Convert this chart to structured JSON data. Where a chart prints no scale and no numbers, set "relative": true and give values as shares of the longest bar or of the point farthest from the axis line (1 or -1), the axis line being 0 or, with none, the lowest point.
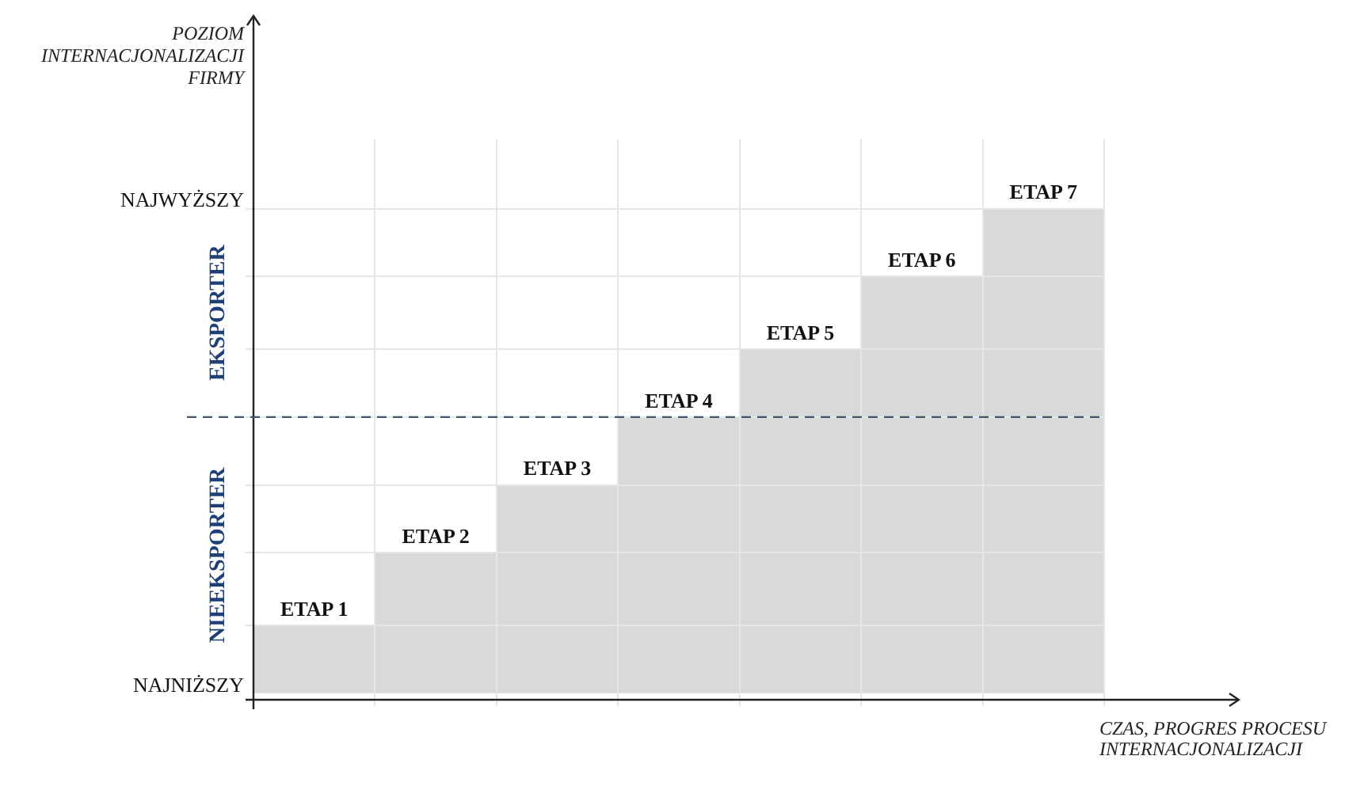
{
  "chart_data": {
    "type": "bar",
    "xlabel": "CZAS, PROGRES PROCESU INTERNACJONALIZACJI",
    "categories": [
      "ETAP 1",
      "ETAP 2",
      "ETAP 3",
      "ETAP 4",
      "ETAP 5",
      "ETAP 6",
      "ETAP 7"
    ],
    "values": [
      0.14,
      0.29,
      0.43,
      0.57,
      0.71,
      0.86,
      1
    ],
    "color": "#d9d9d9",
    "relative": true,
    "grid": true,
    "ref_lines": [
      {
        "axis": "y",
        "value": 0.57,
        "color": "#44546a",
        "line_style": "dashed"
      }
    ],
    "annotations": [
      "POZIOM INTERNACJONALIZACJI FIRMY",
      "NAJWYŻSZY",
      "NAJNIŻSZY",
      "EKSPORTER",
      "NIEEKSPORTER"
    ]
  }
}
